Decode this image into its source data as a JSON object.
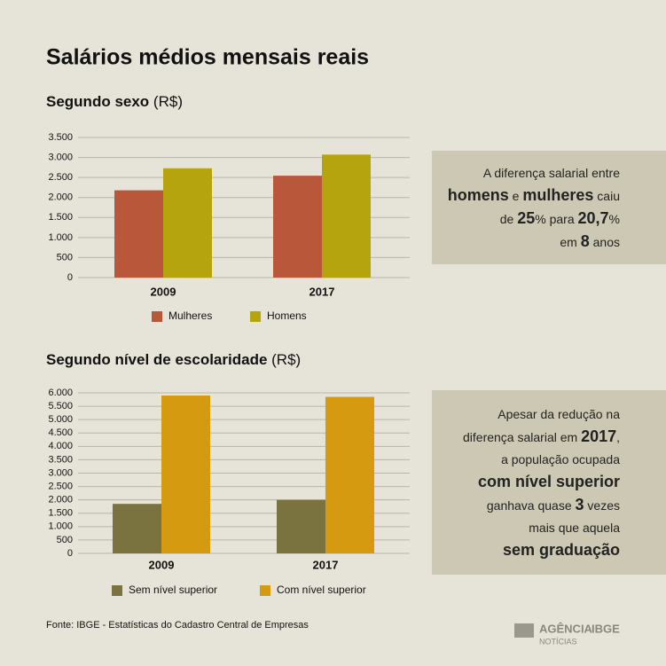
{
  "title": "Salários médios mensais reais",
  "chart_data": [
    {
      "type": "bar",
      "title": "Segundo sexo",
      "unit": "(R$)",
      "categories": [
        "2009",
        "2017"
      ],
      "series": [
        {
          "name": "Mulheres",
          "color": "#b9573a",
          "values": [
            2180,
            2545
          ]
        },
        {
          "name": "Homens",
          "color": "#b5a40e",
          "values": [
            2730,
            3072
          ]
        }
      ],
      "ylim": [
        0,
        3500
      ],
      "yticks": [
        0,
        {
          "value": 500,
          "label": "500"
        },
        {
          "value": 1000,
          "label": "1.000"
        },
        {
          "value": 1500,
          "label": "1.500"
        },
        {
          "value": 2000,
          "label": "2.000"
        },
        {
          "value": 2500,
          "label": "2.500"
        },
        {
          "value": 3000,
          "label": "3.000"
        },
        {
          "value": 3500,
          "label": "3.500"
        }
      ],
      "grid": true
    },
    {
      "type": "bar",
      "title": "Segundo nível de escolaridade",
      "unit": "(R$)",
      "categories": [
        "2009",
        "2017"
      ],
      "series": [
        {
          "name": "Sem nível superior",
          "color": "#7a7340",
          "values": [
            1850,
            2000
          ]
        },
        {
          "name": "Com nível superior",
          "color": "#d59a0f",
          "values": [
            5900,
            5850
          ]
        }
      ],
      "ylim": [
        0,
        6000
      ],
      "yticks": [
        0,
        {
          "value": 500,
          "label": "500"
        },
        {
          "value": 1000,
          "label": "1.000"
        },
        {
          "value": 1500,
          "label": "1.500"
        },
        {
          "value": 2000,
          "label": "2.000"
        },
        {
          "value": 2500,
          "label": "2.500"
        },
        {
          "value": 3000,
          "label": "3.000"
        },
        {
          "value": 3500,
          "label": "3.500"
        },
        {
          "value": 4000,
          "label": "4.000"
        },
        {
          "value": 4500,
          "label": "4.500"
        },
        {
          "value": 5000,
          "label": "5.000"
        },
        {
          "value": 5500,
          "label": "5.500"
        },
        {
          "value": 6000,
          "label": "6.000"
        }
      ],
      "grid": true
    }
  ],
  "notes": [
    {
      "lines": [
        [
          {
            "text": "A diferença salarial entre",
            "bold": false
          }
        ],
        [
          {
            "text": "homens",
            "bold": true
          },
          {
            "text": " e ",
            "bold": false
          },
          {
            "text": "mulheres",
            "bold": true
          },
          {
            "text": " caiu",
            "bold": false
          }
        ],
        [
          {
            "text": "de ",
            "bold": false
          },
          {
            "text": "25",
            "bold": true
          },
          {
            "text": "% para ",
            "bold": false
          },
          {
            "text": "20,7",
            "bold": true
          },
          {
            "text": "%",
            "bold": false
          }
        ],
        [
          {
            "text": "em ",
            "bold": false
          },
          {
            "text": "8",
            "bold": true
          },
          {
            "text": " anos",
            "bold": false
          }
        ]
      ]
    },
    {
      "lines": [
        [
          {
            "text": "Apesar da redução na",
            "bold": false
          }
        ],
        [
          {
            "text": "diferença salarial em ",
            "bold": false
          },
          {
            "text": "2017",
            "bold": true
          },
          {
            "text": ",",
            "bold": false
          }
        ],
        [
          {
            "text": "a população ocupada",
            "bold": false
          }
        ],
        [
          {
            "text": "com nível superior",
            "bold": true
          }
        ],
        [
          {
            "text": "ganhava quase ",
            "bold": false
          },
          {
            "text": "3",
            "bold": true
          },
          {
            "text": " vezes",
            "bold": false
          }
        ],
        [
          {
            "text": "mais que aquela",
            "bold": false
          }
        ],
        [
          {
            "text": "sem graduação",
            "bold": true
          }
        ]
      ]
    }
  ],
  "source": "Fonte: IBGE - Estatísticas do Cadastro Central de Empresas",
  "logo": {
    "name": "AGÊNCIA",
    "brand": "IBGE",
    "sub": "NOTÍCIAS"
  }
}
